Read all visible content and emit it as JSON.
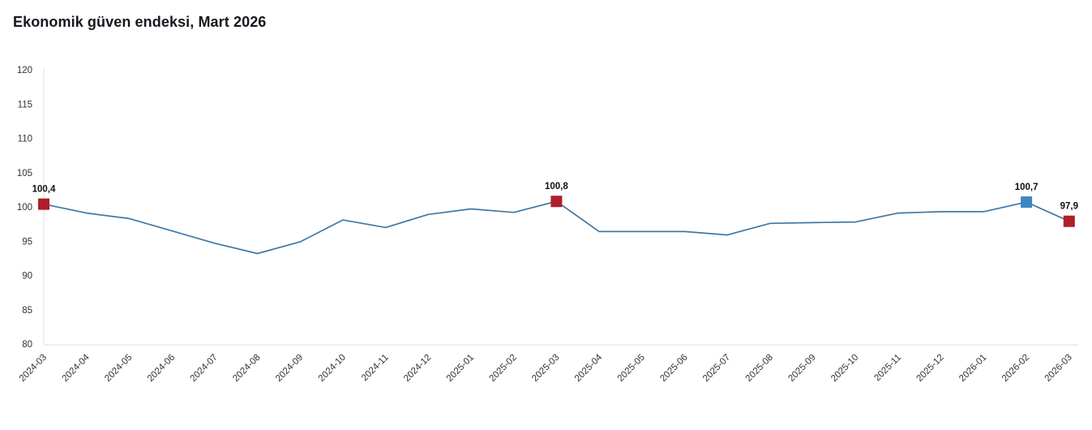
{
  "chart": {
    "title": "Ekonomik güven endeksi, Mart 2026"
  },
  "chart_data": {
    "type": "line",
    "title": "Ekonomik güven endeksi, Mart 2026",
    "x": [
      "2024-03",
      "2024-04",
      "2024-05",
      "2024-06",
      "2024-07",
      "2024-08",
      "2024-09",
      "2024-10",
      "2024-11",
      "2024-12",
      "2025-01",
      "2025-02",
      "2025-03",
      "2025-04",
      "2025-05",
      "2025-06",
      "2025-07",
      "2025-08",
      "2025-09",
      "2025-10",
      "2025-11",
      "2025-12",
      "2026-01",
      "2026-02",
      "2026-03"
    ],
    "series": [
      {
        "name": "Ekonomik güven endeksi",
        "values": [
          100.4,
          99.1,
          98.3,
          96.5,
          94.7,
          93.2,
          94.9,
          98.1,
          97.0,
          98.9,
          99.7,
          99.2,
          100.8,
          96.4,
          96.4,
          96.4,
          95.9,
          97.6,
          97.7,
          97.8,
          99.1,
          99.3,
          99.3,
          100.7,
          97.9
        ]
      }
    ],
    "annotated_points": [
      {
        "x": "2024-03",
        "value": 100.4,
        "label": "100,4",
        "marker_color": "#b01e2b"
      },
      {
        "x": "2025-03",
        "value": 100.8,
        "label": "100,8",
        "marker_color": "#b01e2b"
      },
      {
        "x": "2026-02",
        "value": 100.7,
        "label": "100,7",
        "marker_color": "#3e86c3"
      },
      {
        "x": "2026-03",
        "value": 97.9,
        "label": "97,9",
        "marker_color": "#b01e2b"
      }
    ],
    "xlabel": "",
    "ylabel": "",
    "ylim": [
      80,
      120
    ],
    "y_ticks": [
      80,
      85,
      90,
      95,
      100,
      105,
      110,
      115,
      120
    ],
    "grid": false,
    "legend": "none",
    "colors": {
      "line": "#4177a3",
      "axis": "#d9dce0",
      "tick_label": "#333333",
      "data_label": "#101010",
      "title": "#15181e"
    }
  }
}
